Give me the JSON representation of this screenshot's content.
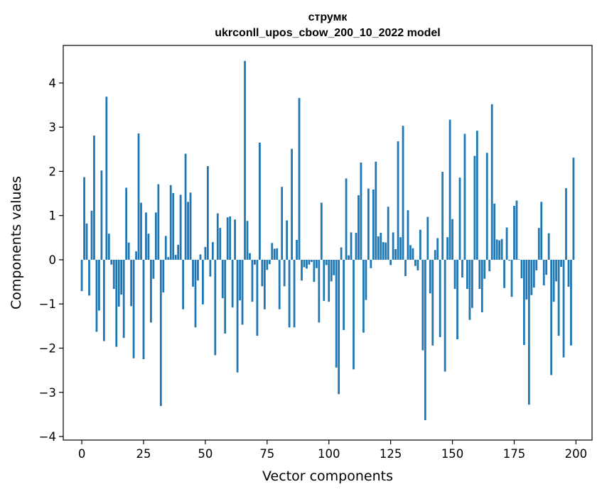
{
  "chart_data": {
    "type": "bar",
    "title_line1": "струмк",
    "title_line2": "ukrconll_upos_cbow_200_10_2022 model",
    "xlabel": "Vector components",
    "ylabel": "Components values",
    "xlim": [
      -7.5,
      206.5
    ],
    "ylim": [
      -4.08,
      4.85
    ],
    "xticks": [
      0,
      25,
      50,
      75,
      100,
      125,
      150,
      175,
      200
    ],
    "yticks": [
      -4,
      -3,
      -2,
      -1,
      0,
      1,
      2,
      3,
      4
    ],
    "xtick_labels": [
      "0",
      "25",
      "50",
      "75",
      "100",
      "125",
      "150",
      "175",
      "200"
    ],
    "ytick_labels": [
      "−4",
      "−3",
      "−2",
      "−1",
      "0",
      "1",
      "2",
      "3",
      "4"
    ],
    "bar_color": "#1f77b4",
    "values": [
      -0.71,
      1.87,
      0.82,
      -0.81,
      1.11,
      2.81,
      -1.63,
      -1.15,
      2.02,
      -1.84,
      3.69,
      0.59,
      -0.11,
      -0.66,
      -1.97,
      -1.06,
      -0.79,
      -1.77,
      1.63,
      0.39,
      -1.05,
      -2.23,
      0.19,
      2.86,
      1.29,
      -2.25,
      1.07,
      0.59,
      -1.42,
      -0.43,
      1.07,
      1.71,
      -3.31,
      -0.74,
      0.54,
      0.06,
      1.69,
      1.51,
      0.11,
      0.34,
      1.47,
      -1.12,
      2.4,
      1.31,
      1.52,
      -0.61,
      -1.53,
      -0.47,
      0.12,
      -1.01,
      0.29,
      2.12,
      -0.38,
      0.4,
      -2.16,
      1.05,
      0.72,
      -0.87,
      -1.67,
      0.96,
      0.98,
      -1.08,
      0.91,
      -2.55,
      -0.92,
      -1.47,
      4.5,
      0.88,
      0.15,
      -0.95,
      -0.11,
      -1.72,
      2.65,
      -0.6,
      -1.12,
      -0.23,
      -0.1,
      0.38,
      0.25,
      0.26,
      -1.12,
      1.65,
      -0.6,
      0.89,
      -1.53,
      2.51,
      -1.53,
      0.45,
      3.66,
      -0.47,
      -0.17,
      -0.2,
      -0.11,
      -0.05,
      -0.5,
      -0.19,
      -1.42,
      1.29,
      -0.93,
      -0.12,
      -0.95,
      -0.49,
      -0.35,
      -2.44,
      -3.04,
      0.28,
      -1.59,
      1.84,
      0.1,
      0.62,
      -2.48,
      0.61,
      1.46,
      2.2,
      -1.65,
      -0.91,
      1.61,
      -0.19,
      1.59,
      2.22,
      0.53,
      0.61,
      0.4,
      0.39,
      1.2,
      -0.12,
      0.62,
      0.24,
      2.68,
      0.51,
      3.03,
      -0.37,
      1.12,
      0.33,
      0.26,
      -0.14,
      -0.24,
      0.68,
      -2.05,
      -3.63,
      0.97,
      -0.76,
      -1.94,
      0.22,
      0.49,
      -1.75,
      1.99,
      -2.53,
      0.51,
      3.17,
      0.92,
      -0.66,
      -1.8,
      1.86,
      -0.4,
      2.85,
      -0.66,
      -1.36,
      -1.09,
      2.35,
      2.92,
      -0.66,
      -1.19,
      -0.43,
      2.42,
      -0.26,
      3.52,
      1.27,
      0.46,
      0.44,
      0.47,
      -0.64,
      0.73,
      -0.02,
      -0.84,
      1.22,
      1.34,
      0.01,
      -0.42,
      -1.93,
      -0.9,
      -3.28,
      -0.8,
      -0.63,
      -0.24,
      0.72,
      1.31,
      -0.58,
      -0.34,
      0.6,
      -2.61,
      -0.95,
      -0.49,
      -1.72,
      -0.16,
      -2.21,
      1.62,
      -0.61,
      -1.94,
      2.31
    ]
  }
}
